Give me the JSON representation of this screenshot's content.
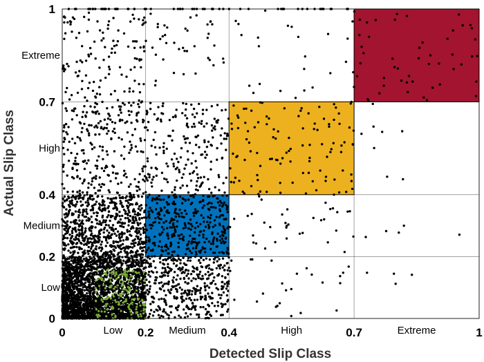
{
  "chart_data": {
    "type": "scatter",
    "title": "",
    "xlabel": "Detected Slip Class",
    "ylabel": "Actual Slip Class",
    "xlim": [
      0,
      1
    ],
    "ylim": [
      0,
      1
    ],
    "grid": true,
    "boundaries": [
      0,
      0.2,
      0.4,
      0.7,
      1
    ],
    "tick_labels": [
      "0",
      "0.2",
      "0.4",
      "0.7",
      "1"
    ],
    "class_labels": [
      "Low",
      "Medium",
      "High",
      "Extreme"
    ],
    "class_centers": [
      0.1,
      0.3,
      0.55,
      0.85
    ],
    "highlight_regions": [
      {
        "class": "Low",
        "range": [
          0,
          0.2
        ],
        "color": "#77ac30"
      },
      {
        "class": "Medium",
        "range": [
          0.2,
          0.4
        ],
        "color": "#0072bd"
      },
      {
        "class": "High",
        "range": [
          0.4,
          0.7
        ],
        "color": "#edb120"
      },
      {
        "class": "Extreme",
        "range": [
          0.7,
          1
        ],
        "color": "#a2142f"
      }
    ],
    "point_density_per_cell": [
      {
        "x": [
          0,
          0.2
        ],
        "y": [
          0,
          0.2
        ],
        "count": 2600,
        "color": "#77ac30"
      },
      {
        "x": [
          0.2,
          0.4
        ],
        "y": [
          0.2,
          0.4
        ],
        "count": 350
      },
      {
        "x": [
          0,
          0.2
        ],
        "y": [
          0.2,
          0.4
        ],
        "count": 700
      },
      {
        "x": [
          0.2,
          0.4
        ],
        "y": [
          0,
          0.2
        ],
        "count": 420
      },
      {
        "x": [
          0.4,
          0.7
        ],
        "y": [
          0.4,
          0.7
        ],
        "count": 110
      },
      {
        "x": [
          0.7,
          1
        ],
        "y": [
          0.7,
          1
        ],
        "count": 50
      },
      {
        "x": [
          0,
          0.2
        ],
        "y": [
          0.4,
          0.7
        ],
        "count": 260
      },
      {
        "x": [
          0.2,
          0.4
        ],
        "y": [
          0.4,
          0.7
        ],
        "count": 200
      },
      {
        "x": [
          0,
          0.2
        ],
        "y": [
          0.7,
          1
        ],
        "count": 130
      },
      {
        "x": [
          0.2,
          0.4
        ],
        "y": [
          0.7,
          1
        ],
        "count": 40
      },
      {
        "x": [
          0.4,
          0.7
        ],
        "y": [
          0.7,
          1
        ],
        "count": 25
      },
      {
        "x": [
          0.4,
          0.7
        ],
        "y": [
          0.2,
          0.4
        ],
        "count": 35
      },
      {
        "x": [
          0.4,
          0.7
        ],
        "y": [
          0,
          0.2
        ],
        "count": 25
      },
      {
        "x": [
          0.7,
          1
        ],
        "y": [
          0.4,
          0.7
        ],
        "count": 8
      },
      {
        "x": [
          0.7,
          1
        ],
        "y": [
          0.2,
          0.4
        ],
        "count": 5
      },
      {
        "x": [
          0.7,
          1
        ],
        "y": [
          0,
          0.2
        ],
        "count": 4
      },
      {
        "x": [
          0,
          0.7
        ],
        "y": [
          1,
          1
        ],
        "count": 60
      }
    ],
    "colors": {
      "point": "#000000",
      "grid": "#000000",
      "background": "#ffffff"
    }
  }
}
